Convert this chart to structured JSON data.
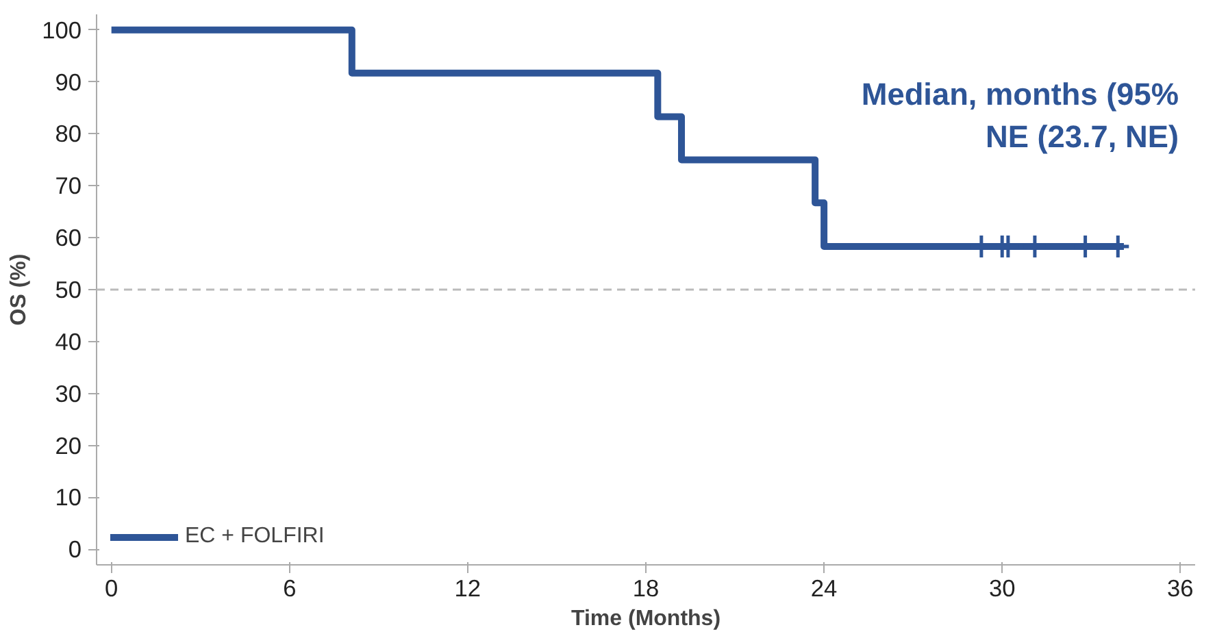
{
  "chart_data": {
    "type": "step",
    "xlabel": "Time (Months)",
    "ylabel": "OS (%)",
    "series": [
      {
        "name": "EC + FOLFIRI",
        "color": "#2e5597",
        "line_style": "solid",
        "marker": "none",
        "x": [
          0,
          8.1,
          18.4,
          19.2,
          23.7,
          24.0,
          34.1
        ],
        "values": [
          100,
          91.7,
          83.3,
          75,
          66.7,
          58.3,
          58.3
        ]
      },
      {
        "color": "#2e5597",
        "type": "scatter",
        "marker": "cross",
        "x": [
          29.3,
          30.0,
          30.2,
          31.1,
          32.8,
          33.9
        ],
        "values": [
          58.3,
          58.3,
          58.3,
          58.3,
          58.3,
          58.3
        ]
      }
    ],
    "xlim": [
      -0.5,
      36.5
    ],
    "ylim": [
      -3,
      103
    ],
    "xticks": [
      0,
      6,
      12,
      18,
      24,
      30,
      36
    ],
    "yticks": [
      0,
      10,
      20,
      30,
      40,
      50,
      60,
      70,
      80,
      90,
      100
    ],
    "ref_lines": [
      {
        "axis": "y",
        "value": 50,
        "color": "#bbbbbb",
        "line_style": "dashed"
      }
    ],
    "annotations": [
      "Median, months (95%\nNE (23.7, NE)"
    ],
    "grid": false,
    "legend": "bottom left"
  }
}
